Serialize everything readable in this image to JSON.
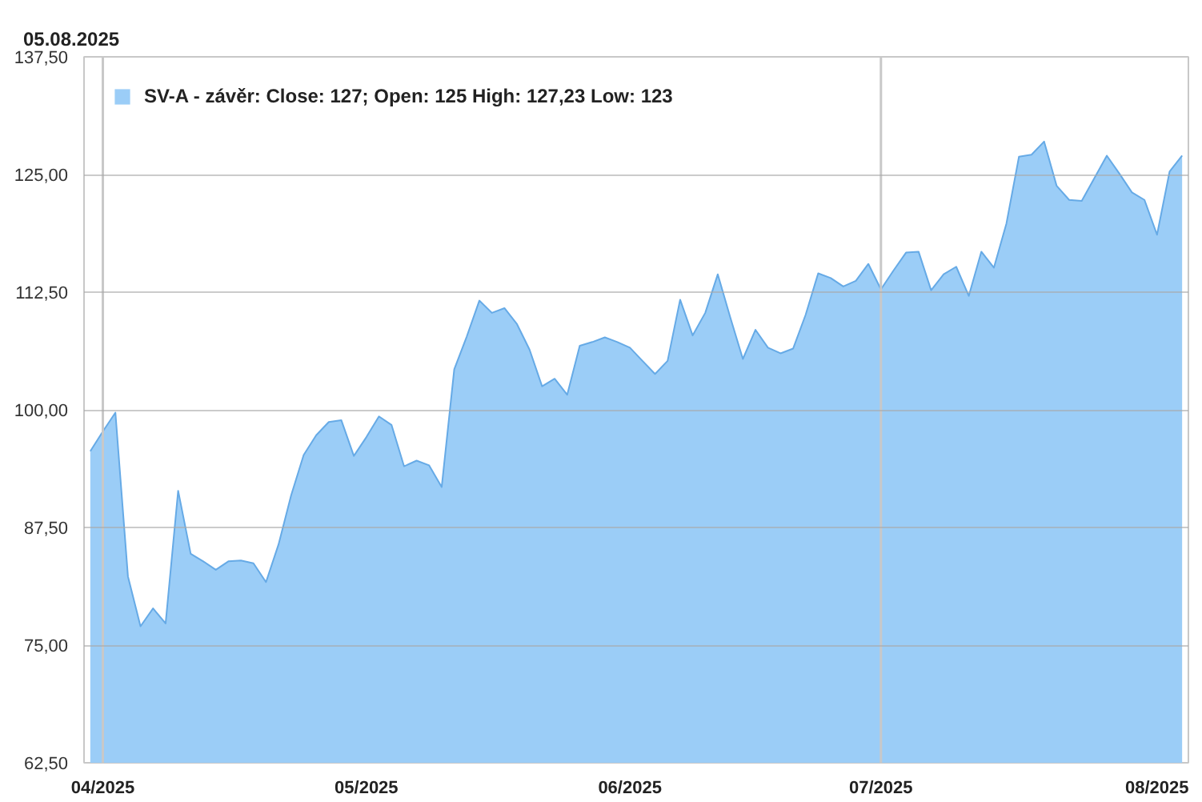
{
  "chart_data": {
    "type": "area",
    "title": "05.08.2025",
    "categories": [
      null,
      "04/2025",
      null,
      null,
      null,
      null,
      null,
      null,
      null,
      null,
      null,
      null,
      null,
      null,
      null,
      null,
      null,
      null,
      null,
      null,
      null,
      null,
      "05/2025",
      null,
      null,
      null,
      null,
      null,
      null,
      null,
      null,
      null,
      null,
      null,
      null,
      null,
      null,
      null,
      null,
      null,
      null,
      null,
      null,
      "06/2025",
      null,
      null,
      null,
      null,
      null,
      null,
      null,
      null,
      null,
      null,
      null,
      null,
      null,
      null,
      null,
      null,
      null,
      null,
      null,
      "07/2025",
      null,
      null,
      null,
      null,
      null,
      null,
      null,
      null,
      null,
      null,
      null,
      null,
      null,
      null,
      null,
      null,
      null,
      null,
      null,
      null,
      null,
      "08/2025",
      null,
      null
    ],
    "series": [
      {
        "name": "SV-A - závěr: Close: 127; Open: 125 High: 127,23 Low: 123",
        "color": "#9bcdf7",
        "values": [
          95.6,
          97.7,
          99.7,
          82.3,
          77.0,
          78.9,
          77.3,
          91.4,
          84.7,
          83.9,
          83.0,
          83.9,
          84.0,
          83.7,
          81.7,
          85.7,
          90.9,
          95.2,
          97.3,
          98.7,
          98.9,
          95.1,
          97.1,
          99.3,
          98.4,
          94.0,
          94.6,
          94.1,
          91.8,
          104.3,
          107.8,
          111.6,
          110.3,
          110.8,
          109.1,
          106.4,
          102.5,
          103.3,
          101.6,
          106.8,
          107.2,
          107.7,
          107.2,
          106.6,
          105.2,
          103.8,
          105.2,
          111.7,
          107.9,
          110.3,
          114.4,
          109.8,
          105.4,
          108.5,
          106.6,
          106.0,
          106.5,
          110.1,
          114.5,
          114.0,
          113.1,
          113.7,
          115.5,
          112.8,
          114.8,
          116.7,
          116.8,
          112.7,
          114.4,
          115.2,
          112.1,
          116.8,
          115.1,
          119.8,
          126.9,
          127.1,
          128.5,
          123.8,
          122.3,
          122.2,
          124.6,
          127.0,
          125.1,
          123.1,
          122.3,
          118.6,
          125.3,
          127.0
        ]
      }
    ],
    "ylim": [
      62.5,
      137.5
    ],
    "yticks": [
      {
        "value": 62.5,
        "label": "62,50"
      },
      {
        "value": 75,
        "label": "75,00"
      },
      {
        "value": 87.5,
        "label": "87,50"
      },
      {
        "value": 100,
        "label": "100,00"
      },
      {
        "value": 112.5,
        "label": "112,50"
      },
      {
        "value": 125,
        "label": "125,00"
      },
      {
        "value": 137.5,
        "label": "137,50"
      }
    ],
    "grid": "y",
    "legend": "top left",
    "ref_lines": [
      {
        "axis": "x",
        "value": "04/2025",
        "color": "#c8c8c8"
      },
      {
        "axis": "x",
        "value": "07/2025",
        "color": "#c8c8c8"
      }
    ]
  }
}
